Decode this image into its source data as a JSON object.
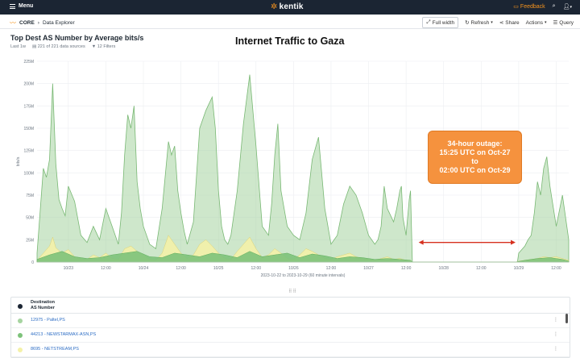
{
  "topbar": {
    "menu_label": "Menu",
    "logo_text": "kentik",
    "feedback_label": "Feedback"
  },
  "breadcrumb": {
    "root": "CORE",
    "page": "Data Explorer"
  },
  "toolbar": {
    "full_width": "Full width",
    "refresh": "Refresh",
    "share": "Share",
    "actions": "Actions",
    "query": "Query"
  },
  "panel": {
    "title": "Top Dest AS Number by Average bits/s",
    "time_range": "Last 1w",
    "data_sources": "221 of 221 data sources",
    "filters": "12 Filters"
  },
  "overlay_title": "Internet Traffic to Gaza",
  "callout": {
    "line1": "34-hour outage:",
    "line2": "15:25 UTC on Oct-27",
    "line3": "to",
    "line4": "02:00 UTC on Oct-29"
  },
  "legend": {
    "header_line1": "Destination",
    "header_line2": "AS Number",
    "rows": [
      {
        "name": "12975 - Paltel,PS",
        "color": "#a6d4a0"
      },
      {
        "name": "44213 - NEWSTARMAX-ASN,PS",
        "color": "#7dc27a"
      },
      {
        "name": "8695 - NETSTREAM,PS",
        "color": "#f4f1a8"
      }
    ]
  },
  "chart_data": {
    "type": "area",
    "ylabel": "bits/s",
    "xlabel": "2023-10-22 to 2023-10-29 (60 minute intervals)",
    "y_ticks": [
      "0",
      "25M",
      "50M",
      "75M",
      "100M",
      "125M",
      "150M",
      "175M",
      "200M",
      "225M"
    ],
    "ylim": [
      0,
      225
    ],
    "x_ticks": [
      "10/23",
      "12:00",
      "10/24",
      "12:00",
      "10/25",
      "12:00",
      "10/26",
      "12:00",
      "10/27",
      "12:00",
      "10/28",
      "12:00",
      "10/29",
      "12:00"
    ],
    "x_tick_hours": [
      12,
      24,
      36,
      48,
      60,
      72,
      84,
      96,
      108,
      120,
      132,
      144,
      156,
      168
    ],
    "xlim_hours": [
      2,
      172
    ],
    "series": [
      {
        "name": "12975 - Paltel,PS",
        "color": "#a6d4a0",
        "hours": [
          2,
          4,
          5,
          6,
          7,
          8,
          9,
          10,
          11,
          12,
          14,
          16,
          18,
          20,
          22,
          24,
          26,
          28,
          29,
          30,
          31,
          32,
          33,
          34,
          35,
          36,
          38,
          40,
          42,
          44,
          45,
          46,
          47,
          48,
          49,
          50,
          52,
          54,
          56,
          58,
          59,
          60,
          61,
          62,
          63,
          64,
          66,
          68,
          70,
          72,
          74,
          76,
          77,
          78,
          79,
          80,
          82,
          84,
          86,
          88,
          90,
          92,
          93,
          94,
          95,
          96,
          98,
          100,
          102,
          104,
          106,
          108,
          110,
          111,
          112,
          113,
          114,
          116,
          117,
          118,
          118.5,
          119,
          120,
          121,
          121.4,
          122,
          130,
          140,
          150,
          155,
          155.6,
          156,
          158,
          159,
          160,
          161,
          162,
          163,
          164,
          165,
          166,
          168,
          170,
          172
        ],
        "values": [
          10,
          105,
          95,
          115,
          200,
          110,
          70,
          60,
          52,
          85,
          68,
          30,
          22,
          40,
          25,
          60,
          40,
          20,
          55,
          120,
          165,
          150,
          175,
          90,
          60,
          40,
          20,
          15,
          60,
          135,
          120,
          130,
          80,
          55,
          35,
          20,
          45,
          150,
          170,
          185,
          150,
          80,
          40,
          25,
          20,
          30,
          80,
          155,
          210,
          130,
          40,
          30,
          65,
          120,
          155,
          80,
          40,
          30,
          25,
          55,
          115,
          140,
          100,
          60,
          40,
          20,
          30,
          65,
          85,
          75,
          55,
          30,
          20,
          25,
          40,
          85,
          60,
          45,
          60,
          80,
          85,
          50,
          30,
          70,
          80,
          0,
          0,
          0,
          0,
          0,
          0,
          10,
          18,
          25,
          30,
          55,
          90,
          75,
          105,
          118,
          85,
          40,
          75,
          25
        ]
      },
      {
        "name": "8695 - NETSTREAM,PS",
        "color": "#f4f1a8",
        "hours": [
          2,
          4,
          6,
          7,
          8,
          10,
          12,
          14,
          16,
          18,
          20,
          22,
          24,
          26,
          28,
          30,
          32,
          34,
          36,
          38,
          40,
          42,
          44,
          46,
          48,
          50,
          52,
          54,
          56,
          58,
          60,
          62,
          64,
          66,
          68,
          70,
          72,
          74,
          76,
          78,
          80,
          82,
          84,
          86,
          88,
          90,
          92,
          94,
          96,
          98,
          100,
          102,
          104,
          106,
          108,
          110,
          112,
          114,
          116,
          118,
          120,
          121.4,
          122,
          155,
          156,
          158,
          160,
          162,
          164,
          166,
          168,
          170,
          172
        ],
        "values": [
          2,
          10,
          18,
          28,
          16,
          10,
          14,
          6,
          4,
          3,
          8,
          5,
          10,
          4,
          3,
          15,
          18,
          12,
          8,
          3,
          2,
          10,
          30,
          20,
          10,
          4,
          8,
          20,
          25,
          18,
          10,
          4,
          3,
          12,
          20,
          28,
          15,
          5,
          8,
          15,
          10,
          4,
          3,
          8,
          15,
          12,
          8,
          4,
          3,
          6,
          8,
          10,
          6,
          4,
          3,
          2,
          4,
          6,
          3,
          4,
          2,
          2,
          0,
          0,
          1,
          2,
          3,
          4,
          6,
          5,
          6,
          4,
          2
        ]
      },
      {
        "name": "44213 - NEWSTARMAX-ASN,PS",
        "color": "#7dc27a",
        "hours": [
          2,
          6,
          10,
          14,
          18,
          22,
          26,
          30,
          34,
          38,
          42,
          46,
          50,
          54,
          58,
          62,
          66,
          70,
          74,
          78,
          82,
          86,
          90,
          94,
          98,
          102,
          106,
          110,
          114,
          118,
          121.4,
          122,
          155,
          158,
          162,
          166,
          170,
          172
        ],
        "values": [
          3,
          8,
          12,
          6,
          4,
          5,
          8,
          10,
          12,
          6,
          5,
          10,
          8,
          6,
          10,
          8,
          5,
          12,
          6,
          8,
          10,
          5,
          9,
          7,
          4,
          6,
          5,
          3,
          4,
          3,
          2,
          0,
          0,
          2,
          4,
          5,
          3,
          1
        ]
      }
    ],
    "annotation": {
      "type": "double-arrow",
      "from_hour": 124,
      "to_hour": 155,
      "value": 22
    }
  }
}
